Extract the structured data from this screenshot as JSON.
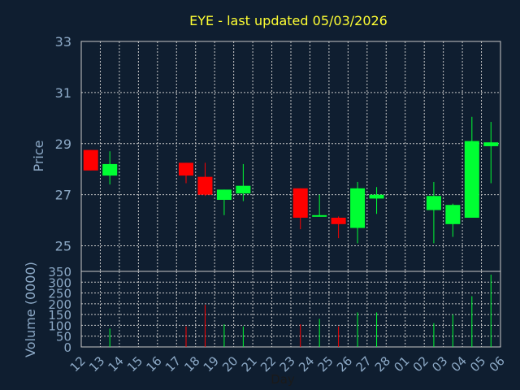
{
  "chart_data": {
    "type": "candlestick",
    "title": "EYE - last updated 05/03/2026",
    "xlabel": "Day",
    "colors": {
      "background": "#0f1e30",
      "up": "#00ff33",
      "down": "#ff0000",
      "title": "#ffff33",
      "axis_text": "#8ca9c6",
      "grid": "#c8c8c8"
    },
    "x_ticks": [
      "12",
      "13",
      "14",
      "15",
      "16",
      "17",
      "18",
      "19",
      "20",
      "21",
      "22",
      "23",
      "24",
      "25",
      "26",
      "27",
      "28",
      "01",
      "02",
      "03",
      "04",
      "05",
      "06"
    ],
    "price_panel": {
      "ylabel": "Price",
      "ylim": [
        24,
        33
      ],
      "yticks": [
        "25",
        "27",
        "29",
        "31",
        "33"
      ],
      "grid": true
    },
    "volume_panel": {
      "ylabel": "Volume (0000)",
      "ylim": [
        0,
        350
      ],
      "yticks": [
        "0",
        "50",
        "100",
        "150",
        "200",
        "250",
        "300",
        "350"
      ],
      "grid": true
    },
    "candles": [
      {
        "day": "12",
        "open": 28.75,
        "high": 28.75,
        "low": 27.95,
        "close": 27.95,
        "volume": 0
      },
      {
        "day": "13",
        "open": 27.75,
        "high": 28.7,
        "low": 27.4,
        "close": 28.2,
        "volume": 85
      },
      {
        "day": "17",
        "open": 28.25,
        "high": 28.25,
        "low": 27.45,
        "close": 27.75,
        "volume": 95
      },
      {
        "day": "18",
        "open": 27.7,
        "high": 28.25,
        "low": 26.95,
        "close": 27.0,
        "volume": 195
      },
      {
        "day": "19",
        "open": 26.8,
        "high": 27.2,
        "low": 26.2,
        "close": 27.2,
        "volume": 105
      },
      {
        "day": "20",
        "open": 27.05,
        "high": 28.2,
        "low": 26.75,
        "close": 27.35,
        "volume": 95
      },
      {
        "day": "23",
        "open": 27.25,
        "high": 27.25,
        "low": 25.65,
        "close": 26.1,
        "volume": 105
      },
      {
        "day": "24",
        "open": 26.2,
        "high": 27.0,
        "low": 26.15,
        "close": 26.2,
        "volume": 130
      },
      {
        "day": "25",
        "open": 26.1,
        "high": 26.15,
        "low": 25.3,
        "close": 25.85,
        "volume": 95
      },
      {
        "day": "26",
        "open": 25.7,
        "high": 27.5,
        "low": 25.1,
        "close": 27.25,
        "volume": 160
      },
      {
        "day": "27",
        "open": 26.85,
        "high": 27.3,
        "low": 26.25,
        "close": 27.0,
        "volume": 160
      },
      {
        "day": "02",
        "open": 26.4,
        "high": 27.5,
        "low": 25.1,
        "close": 26.95,
        "volume": 110
      },
      {
        "day": "03",
        "open": 25.85,
        "high": 26.65,
        "low": 25.35,
        "close": 26.6,
        "volume": 150
      },
      {
        "day": "04",
        "open": 26.1,
        "high": 30.05,
        "low": 26.1,
        "close": 29.1,
        "volume": 235
      },
      {
        "day": "05",
        "open": 28.9,
        "high": 29.85,
        "low": 27.45,
        "close": 29.05,
        "volume": 335
      }
    ]
  }
}
